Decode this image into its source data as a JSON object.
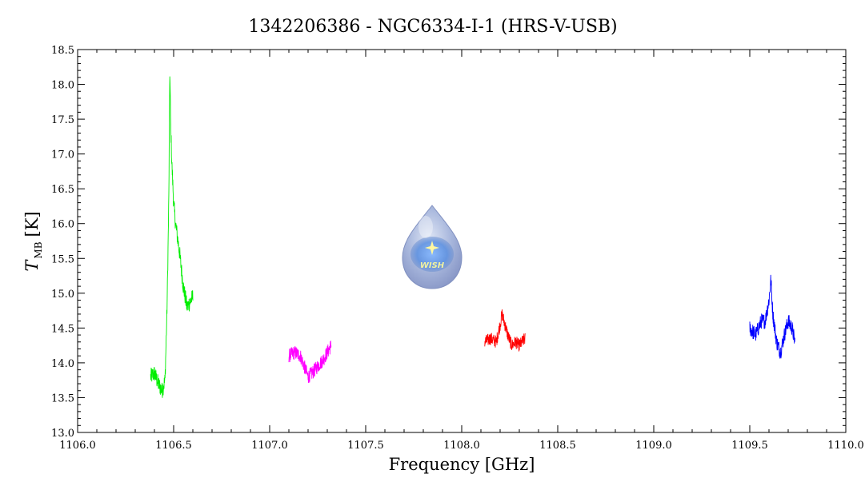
{
  "chart_data": {
    "type": "line",
    "title": "1342206386 - NGC6334-I-1 (HRS-V-USB)",
    "xlabel": "Frequency [GHz]",
    "ylabel_main": "T",
    "ylabel_sub": "MB",
    "ylabel_unit": "[K]",
    "xlim": [
      1106.0,
      1110.0
    ],
    "ylim": [
      13.0,
      18.5
    ],
    "xticks": [
      1106.0,
      1106.5,
      1107.0,
      1107.5,
      1108.0,
      1108.5,
      1109.0,
      1109.5,
      1110.0
    ],
    "xtick_labels": [
      "1106.0",
      "1106.5",
      "1107.0",
      "1107.5",
      "1108.0",
      "1108.5",
      "1109.0",
      "1109.5",
      "1110.0"
    ],
    "yticks": [
      13.0,
      13.5,
      14.0,
      14.5,
      15.0,
      15.5,
      16.0,
      16.5,
      17.0,
      17.5,
      18.0,
      18.5
    ],
    "ytick_labels": [
      "13.0",
      "13.5",
      "14.0",
      "14.5",
      "15.0",
      "15.5",
      "16.0",
      "16.5",
      "17.0",
      "17.5",
      "18.0",
      "18.5"
    ],
    "grid": false,
    "logo_text": "WISH",
    "series": [
      {
        "color": "#00ee00",
        "x": [
          1106.38,
          1106.4,
          1106.42,
          1106.44,
          1106.455,
          1106.465,
          1106.47,
          1106.475,
          1106.48,
          1106.485,
          1106.49,
          1106.5,
          1106.51,
          1106.52,
          1106.53,
          1106.55,
          1106.57,
          1106.6
        ],
        "y": [
          13.8,
          13.85,
          13.7,
          13.6,
          13.75,
          14.7,
          15.5,
          16.4,
          18.2,
          17.4,
          16.9,
          16.3,
          16.0,
          15.8,
          15.6,
          15.1,
          14.8,
          14.95
        ],
        "noise": 0.12
      },
      {
        "color": "#ff00ff",
        "x": [
          1107.1,
          1107.13,
          1107.16,
          1107.18,
          1107.2,
          1107.22,
          1107.25,
          1107.28,
          1107.3,
          1107.32
        ],
        "y": [
          14.1,
          14.15,
          14.1,
          13.95,
          13.8,
          13.85,
          13.95,
          14.05,
          14.15,
          14.25
        ],
        "noise": 0.1
      },
      {
        "color": "#ff0000",
        "x": [
          1108.12,
          1108.15,
          1108.18,
          1108.2,
          1108.21,
          1108.22,
          1108.24,
          1108.26,
          1108.28,
          1108.3,
          1108.33
        ],
        "y": [
          14.3,
          14.35,
          14.3,
          14.55,
          14.7,
          14.6,
          14.4,
          14.25,
          14.3,
          14.25,
          14.35
        ],
        "noise": 0.09
      },
      {
        "color": "#0000ff",
        "x": [
          1109.5,
          1109.53,
          1109.56,
          1109.58,
          1109.6,
          1109.61,
          1109.62,
          1109.64,
          1109.66,
          1109.68,
          1109.7,
          1109.72,
          1109.735
        ],
        "y": [
          14.5,
          14.4,
          14.6,
          14.6,
          14.9,
          15.2,
          14.7,
          14.3,
          14.15,
          14.4,
          14.6,
          14.5,
          14.3
        ],
        "noise": 0.11
      }
    ]
  }
}
